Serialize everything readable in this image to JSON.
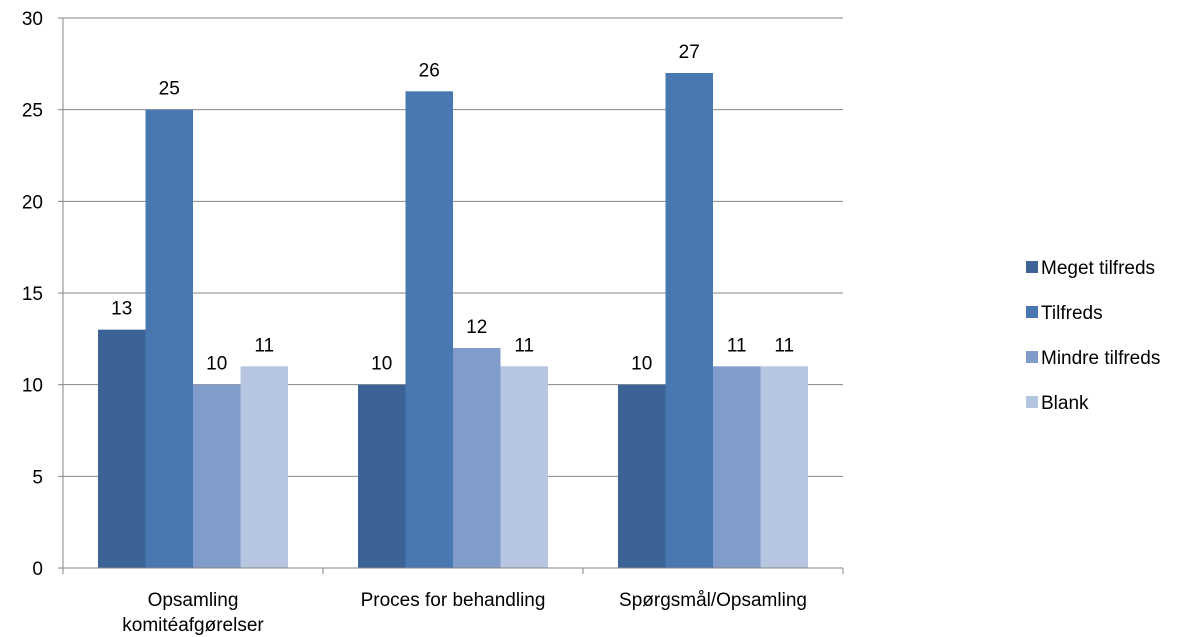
{
  "chart_data": {
    "type": "bar",
    "title": "",
    "xlabel": "",
    "ylabel": "",
    "ylim": [
      0,
      30
    ],
    "yticks": [
      0,
      5,
      10,
      15,
      20,
      25,
      30
    ],
    "grid": true,
    "legend_position": "right",
    "categories": [
      [
        "Opsamling",
        "komitéafgørelser"
      ],
      [
        "Proces for behandling"
      ],
      [
        "Spørgsmål/Opsamling"
      ]
    ],
    "series": [
      {
        "name": "Meget tilfreds",
        "color": "#3b6396",
        "values": [
          13,
          10,
          10
        ]
      },
      {
        "name": "Tilfreds",
        "color": "#4877b1",
        "values": [
          25,
          26,
          27
        ]
      },
      {
        "name": "Mindre tilfreds",
        "color": "#7f9ccb",
        "values": [
          10,
          12,
          11
        ]
      },
      {
        "name": "Blank",
        "color": "#b6c5e0",
        "values": [
          11,
          11,
          11
        ]
      }
    ]
  }
}
